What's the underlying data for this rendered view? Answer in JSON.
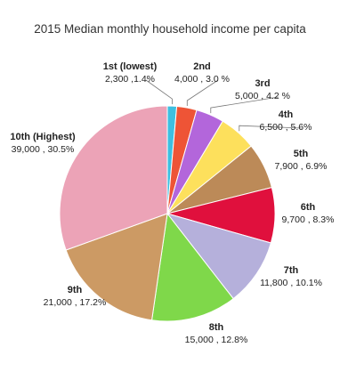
{
  "chart_data": {
    "type": "pie",
    "title": "2015 Median monthly household income per capita",
    "slices": [
      {
        "name": "1st (lowest)",
        "value_label": "2,300 ,1.4%",
        "value": 2300,
        "percent": 1.4,
        "color": "#3dbfe0"
      },
      {
        "name": "2nd",
        "value_label": "4,000 , 3.0 %",
        "value": 4000,
        "percent": 3.0,
        "color": "#ee5436"
      },
      {
        "name": "3rd",
        "value_label": "5,000 , 4.2 %",
        "value": 5000,
        "percent": 4.2,
        "color": "#b366db"
      },
      {
        "name": "4th",
        "value_label": "6,500 , 5.6%",
        "value": 6500,
        "percent": 5.6,
        "color": "#fde05c"
      },
      {
        "name": "5th",
        "value_label": "7,900 , 6.9%",
        "value": 7900,
        "percent": 6.9,
        "color": "#bc8a58"
      },
      {
        "name": "6th",
        "value_label": "9,700 , 8.3%",
        "value": 9700,
        "percent": 8.3,
        "color": "#e0103d"
      },
      {
        "name": "7th",
        "value_label": "11,800 , 10.1%",
        "value": 11800,
        "percent": 10.1,
        "color": "#b5b0db"
      },
      {
        "name": "8th",
        "value_label": "15,000 , 12.8%",
        "value": 15000,
        "percent": 12.8,
        "color": "#7fd84a"
      },
      {
        "name": "9th",
        "value_label": "21,000 , 17.2%",
        "value": 21000,
        "percent": 17.2,
        "color": "#cc9a64"
      },
      {
        "name": "10th (Highest)",
        "value_label": "39,000 , 30.5%",
        "value": 39000,
        "percent": 30.5,
        "color": "#eca3b7"
      }
    ]
  }
}
